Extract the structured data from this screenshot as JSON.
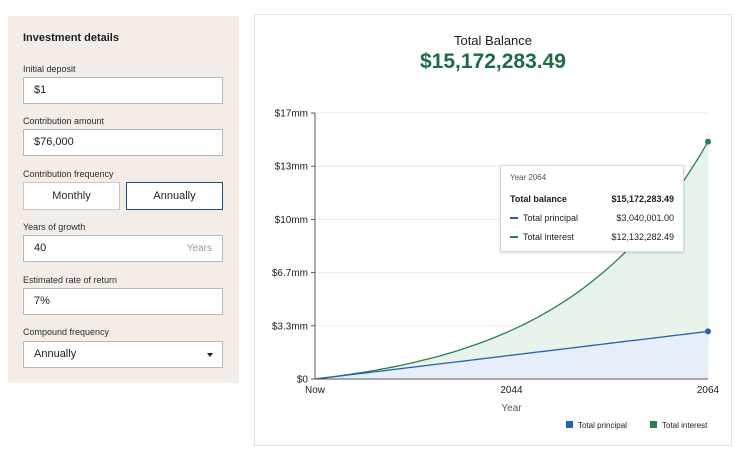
{
  "panel": {
    "title": "Investment details",
    "initial_deposit": {
      "label": "Initial deposit",
      "value": "$1"
    },
    "contribution_amount": {
      "label": "Contribution amount",
      "value": "$76,000"
    },
    "contribution_frequency": {
      "label": "Contribution frequency",
      "options": [
        "Monthly",
        "Annually"
      ],
      "selected": "Annually"
    },
    "years_of_growth": {
      "label": "Years of growth",
      "value": "40",
      "suffix": "Years"
    },
    "rate_of_return": {
      "label": "Estimated rate of return",
      "value": "7%"
    },
    "compound_frequency": {
      "label": "Compound frequency",
      "value": "Annually"
    }
  },
  "summary": {
    "label": "Total Balance",
    "value": "$15,172,283.49"
  },
  "tooltip": {
    "year": "Year 2064",
    "total_balance_label": "Total balance",
    "total_balance_value": "$15,172,283.49",
    "principal_label": "Total principal",
    "principal_value": "$3,040,001.00",
    "interest_label": "Total interest",
    "interest_value": "$12,132,282.49"
  },
  "legend": {
    "principal": "Total principal",
    "interest": "Total interest"
  },
  "colors": {
    "principal": "#2563a8",
    "interest": "#2e7d4f",
    "principal_fill": "#e6eef9",
    "interest_fill": "#e8f3ec",
    "accent": "#1f6b45"
  },
  "chart_data": {
    "type": "area",
    "xlabel": "Year",
    "x_ticks": [
      "Now",
      "2044",
      "2064"
    ],
    "y_ticks": [
      "$0",
      "$3.3mm",
      "$6.7mm",
      "$10mm",
      "$13mm",
      "$17mm"
    ],
    "ylim": [
      0,
      17000000
    ],
    "x_range": [
      2024,
      2064
    ],
    "series": [
      {
        "name": "Total principal",
        "x": [
          2024,
          2064
        ],
        "y": [
          0,
          3040001
        ]
      },
      {
        "name": "Total interest",
        "x": [
          2024,
          2064
        ],
        "y": [
          0,
          15172283.49
        ]
      }
    ]
  }
}
